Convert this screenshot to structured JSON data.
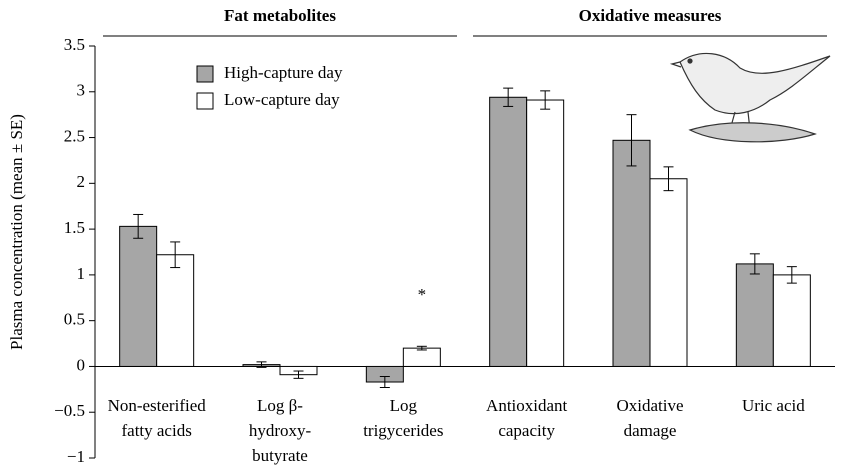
{
  "chart_data": {
    "type": "bar",
    "y_label": "Plasma concentration (mean ± SE)",
    "groups": [
      {
        "label": "Fat metabolites",
        "size": 3
      },
      {
        "label": "Oxidative measures",
        "size": 3
      }
    ],
    "categories": [
      [
        "Non-esterified",
        "fatty acids"
      ],
      [
        "Log β-",
        "hydroxy-",
        "butyrate"
      ],
      [
        "Log",
        "trigycerides"
      ],
      [
        "Antioxidant",
        "capacity"
      ],
      [
        "Oxidative",
        "damage"
      ],
      [
        "Uric acid"
      ]
    ],
    "series": [
      {
        "name": "High-capture day",
        "color": "#a6a6a6",
        "values": [
          1.53,
          0.02,
          -0.17,
          2.94,
          2.47,
          1.12
        ],
        "errors": [
          0.13,
          0.03,
          0.06,
          0.1,
          0.28,
          0.11
        ]
      },
      {
        "name": "Low-capture day",
        "color": "#ffffff",
        "values": [
          1.22,
          -0.09,
          0.2,
          2.91,
          2.05,
          1.0
        ],
        "errors": [
          0.14,
          0.04,
          0.02,
          0.1,
          0.13,
          0.09
        ]
      }
    ],
    "annotations": [
      {
        "text": "*",
        "category": 2,
        "series": 1
      }
    ],
    "ylim": [
      -1,
      3.5
    ],
    "yticks": [
      {
        "value": -1,
        "label": "−1"
      },
      {
        "value": -0.5,
        "label": "−0.5"
      },
      0,
      0.5,
      1,
      1.5,
      2,
      2.5,
      3,
      3.5
    ],
    "grid": false,
    "legend": "upper-left"
  }
}
